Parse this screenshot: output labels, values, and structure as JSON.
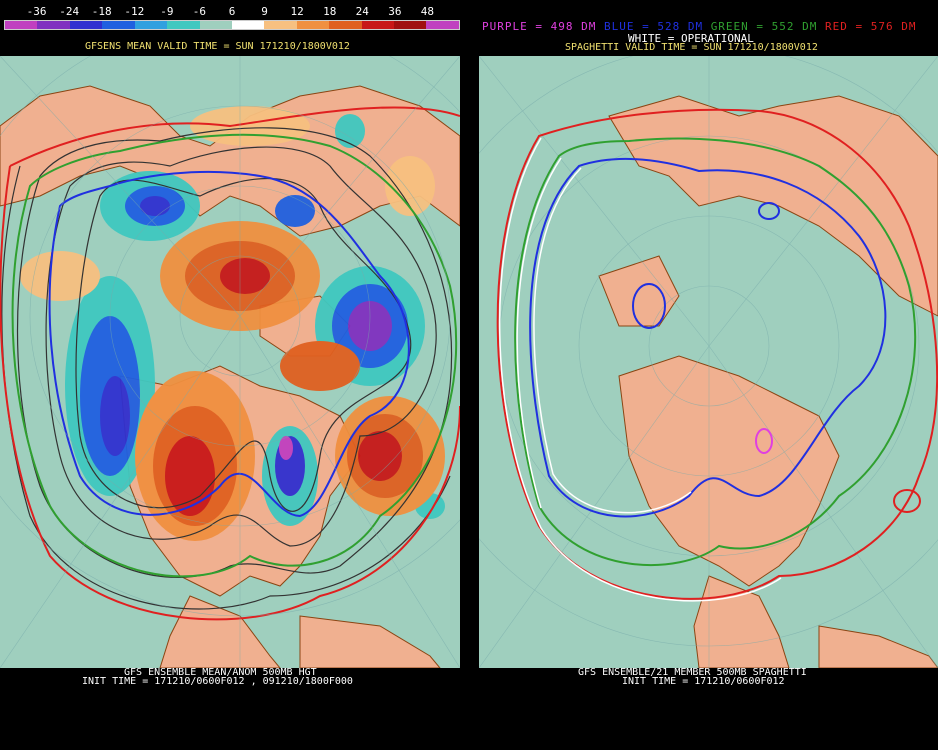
{
  "legend": {
    "labels": [
      "-36",
      "-24",
      "-18",
      "-12",
      "-9",
      "-6",
      "6",
      "9",
      "12",
      "18",
      "24",
      "36",
      "48"
    ],
    "colors": [
      "#c040c0",
      "#8030c0",
      "#3030d0",
      "#2060e0",
      "#30a0e0",
      "#40c8c0",
      "#9fcfbe",
      "#ffffff",
      "#f7c080",
      "#f09040",
      "#e06020",
      "#c81818",
      "#a01010",
      "#c040c0"
    ]
  },
  "left": {
    "valid_title": "GFSENS MEAN VALID TIME = SUN 171210/1800V012",
    "footer1": "GFS ENSEMBLE MEAN/ANOM 500MB HGT",
    "footer2": "INIT TIME = 171210/0600F012 , 091210/1800F000"
  },
  "right": {
    "spaghetti_parts": [
      {
        "text": "PURPLE = 498 DM",
        "color": "#e040e0"
      },
      {
        "text": "BLUE = 528 DM",
        "color": "#2030e0"
      },
      {
        "text": "GREEN = 552 DM",
        "color": "#30a030"
      },
      {
        "text": "RED = 576 DM",
        "color": "#e02020"
      }
    ],
    "valid_title": "SPAGHETTI VALID TIME = SUN 171210/1800V012",
    "operational": "WHITE = OPERATIONAL",
    "footer1": "GFS ENSEMBLE/21 MEMBER 500MB SPAGHETTI",
    "footer2": "INIT TIME = 171210/0600F012"
  },
  "colors": {
    "ocean": "#9fcfbe",
    "land": "#f0b090",
    "coast": "#8b4513"
  }
}
